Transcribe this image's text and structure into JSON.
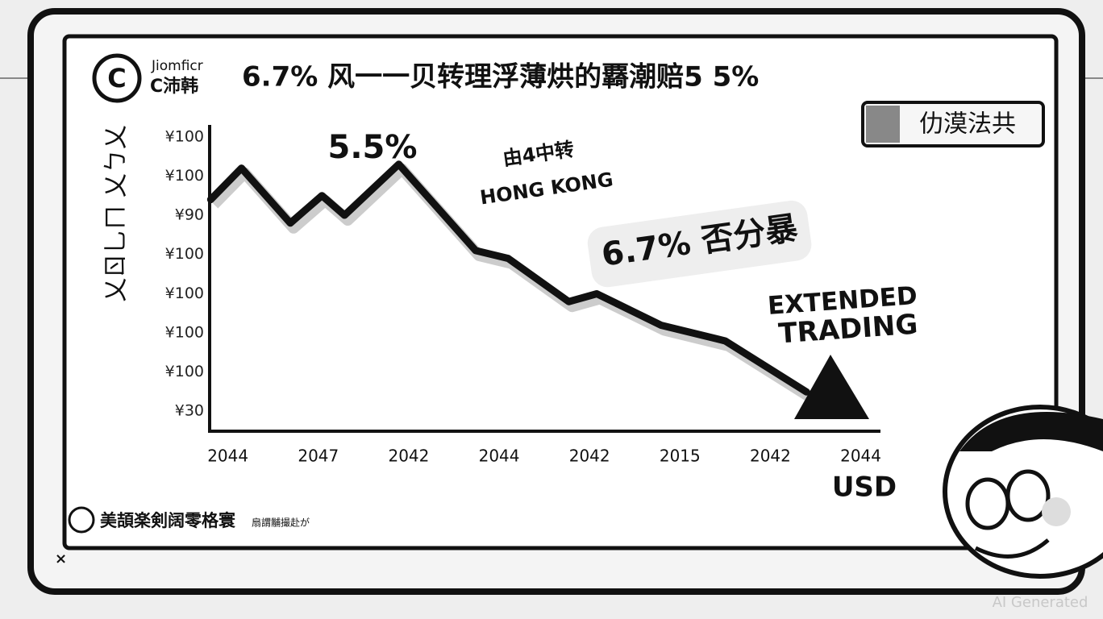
{
  "chart_data": {
    "type": "line",
    "logo": "Jiomficr",
    "logo_sub": "C沛韩",
    "title": "6.7% 风一一贝转理浮薄烘的覉潮赔5 5%",
    "button": "仂漠法共",
    "y_label": "乂ㄖ乚ㄇ 乂ㄅ乂",
    "y_labels": [
      "¥100",
      "¥100",
      "¥90",
      "¥100",
      "¥100",
      "¥100",
      "¥100",
      "¥30"
    ],
    "categories": [
      "2044",
      "2047",
      "2042",
      "2044",
      "2042",
      "2015",
      "2042",
      "2044"
    ],
    "x_unit": "USD",
    "xlim": [
      -0.22,
      7.2
    ],
    "ylim": [
      -0.5,
      7.3
    ],
    "series": [
      {
        "color": "#111111",
        "x": [
          -0.19,
          0.15,
          0.69,
          1.04,
          1.29,
          1.89,
          2.74,
          3.1,
          3.77,
          4.08,
          4.79,
          5.5,
          6.4
        ],
        "values": [
          5.4,
          6.2,
          4.8,
          5.5,
          5.0,
          6.3,
          4.1,
          3.9,
          2.8,
          3.0,
          2.2,
          1.8,
          0.5
        ]
      }
    ],
    "annotations": [
      "5.5%",
      "由4中转",
      "HONG KONG",
      "6.7% 否分暴",
      "EXTENDED",
      "TRADING"
    ],
    "footer": "美頡楽剣阔零格寰",
    "footer_small": "扇謂黼撮赴が",
    "watermark": "AI Generated"
  }
}
